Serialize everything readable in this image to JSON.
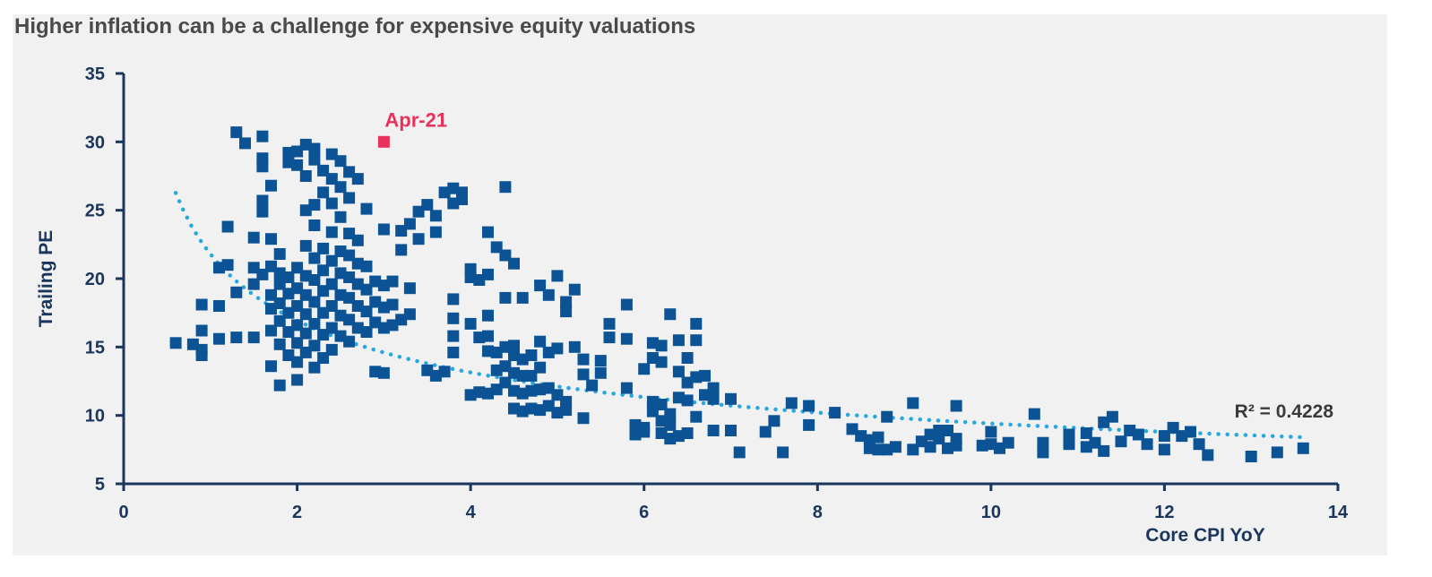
{
  "chart_data": {
    "type": "scatter",
    "title": "Higher inflation can be a challenge for expensive equity valuations",
    "xlabel": "Core CPI YoY",
    "ylabel": "Trailing PE",
    "xlim": [
      0,
      14
    ],
    "ylim": [
      5,
      35
    ],
    "xticks": [
      "0",
      "2",
      "4",
      "6",
      "8",
      "10",
      "12",
      "14"
    ],
    "yticks": [
      "5",
      "10",
      "15",
      "20",
      "25",
      "30",
      "35"
    ],
    "grid": false,
    "legend": "none",
    "colors": {
      "points": "#0b5394",
      "highlight": "#e8315b",
      "trendline": "#29a8e0",
      "axis": "#1b365d"
    },
    "series": [
      {
        "points": [
          [
            0.6,
            15.3
          ],
          [
            0.8,
            15.2
          ],
          [
            0.9,
            14.8
          ],
          [
            0.9,
            14.4
          ],
          [
            0.9,
            16.2
          ],
          [
            0.9,
            18.1
          ],
          [
            1.1,
            15.6
          ],
          [
            1.1,
            18.0
          ],
          [
            1.1,
            20.8
          ],
          [
            1.2,
            21.0
          ],
          [
            1.2,
            23.8
          ],
          [
            1.3,
            19.0
          ],
          [
            1.3,
            15.7
          ],
          [
            1.3,
            30.7
          ],
          [
            1.4,
            29.9
          ],
          [
            1.5,
            15.7
          ],
          [
            1.5,
            19.6
          ],
          [
            1.5,
            20.8
          ],
          [
            1.5,
            23.0
          ],
          [
            1.6,
            20.3
          ],
          [
            1.6,
            24.9
          ],
          [
            1.6,
            25.7
          ],
          [
            1.6,
            28.2
          ],
          [
            1.6,
            28.8
          ],
          [
            1.6,
            30.4
          ],
          [
            1.7,
            16.2
          ],
          [
            1.7,
            17.8
          ],
          [
            1.7,
            18.8
          ],
          [
            1.7,
            20.9
          ],
          [
            1.7,
            22.9
          ],
          [
            1.7,
            26.8
          ],
          [
            1.7,
            13.6
          ],
          [
            1.8,
            15.2
          ],
          [
            1.8,
            16.9
          ],
          [
            1.8,
            18.2
          ],
          [
            1.8,
            19.6
          ],
          [
            1.8,
            20.4
          ],
          [
            1.8,
            21.8
          ],
          [
            1.8,
            12.2
          ],
          [
            1.9,
            14.4
          ],
          [
            1.9,
            16.1
          ],
          [
            1.9,
            17.5
          ],
          [
            1.9,
            18.9
          ],
          [
            1.9,
            20.1
          ],
          [
            1.9,
            29.2
          ],
          [
            1.9,
            28.5
          ],
          [
            2.0,
            13.9
          ],
          [
            2.0,
            15.3
          ],
          [
            2.0,
            16.6
          ],
          [
            2.0,
            18.0
          ],
          [
            2.0,
            19.3
          ],
          [
            2.0,
            20.8
          ],
          [
            2.0,
            28.3
          ],
          [
            2.0,
            29.3
          ],
          [
            2.0,
            12.6
          ],
          [
            2.1,
            14.6
          ],
          [
            2.1,
            16.0
          ],
          [
            2.1,
            17.4
          ],
          [
            2.1,
            18.8
          ],
          [
            2.1,
            20.2
          ],
          [
            2.1,
            22.4
          ],
          [
            2.1,
            25.0
          ],
          [
            2.1,
            27.5
          ],
          [
            2.1,
            29.8
          ],
          [
            2.2,
            13.5
          ],
          [
            2.2,
            15.1
          ],
          [
            2.2,
            16.7
          ],
          [
            2.2,
            18.3
          ],
          [
            2.2,
            19.9
          ],
          [
            2.2,
            21.5
          ],
          [
            2.2,
            23.9
          ],
          [
            2.2,
            25.4
          ],
          [
            2.2,
            28.7
          ],
          [
            2.2,
            29.5
          ],
          [
            2.3,
            14.2
          ],
          [
            2.3,
            15.9
          ],
          [
            2.3,
            17.5
          ],
          [
            2.3,
            19.1
          ],
          [
            2.3,
            20.6
          ],
          [
            2.3,
            22.2
          ],
          [
            2.3,
            26.3
          ],
          [
            2.3,
            27.9
          ],
          [
            2.4,
            14.8
          ],
          [
            2.4,
            16.4
          ],
          [
            2.4,
            18.0
          ],
          [
            2.4,
            19.6
          ],
          [
            2.4,
            21.3
          ],
          [
            2.4,
            23.4
          ],
          [
            2.4,
            25.5
          ],
          [
            2.4,
            27.3
          ],
          [
            2.4,
            29.1
          ],
          [
            2.5,
            15.8
          ],
          [
            2.5,
            17.3
          ],
          [
            2.5,
            18.8
          ],
          [
            2.5,
            20.4
          ],
          [
            2.5,
            22.0
          ],
          [
            2.5,
            24.5
          ],
          [
            2.5,
            26.7
          ],
          [
            2.5,
            28.6
          ],
          [
            2.6,
            15.4
          ],
          [
            2.6,
            17.0
          ],
          [
            2.6,
            18.6
          ],
          [
            2.6,
            20.1
          ],
          [
            2.6,
            21.7
          ],
          [
            2.6,
            23.3
          ],
          [
            2.6,
            25.9
          ],
          [
            2.6,
            27.8
          ],
          [
            2.7,
            16.4
          ],
          [
            2.7,
            18.0
          ],
          [
            2.7,
            19.6
          ],
          [
            2.7,
            21.1
          ],
          [
            2.7,
            22.8
          ],
          [
            2.7,
            27.3
          ],
          [
            2.8,
            16.1
          ],
          [
            2.8,
            17.6
          ],
          [
            2.8,
            19.2
          ],
          [
            2.8,
            20.9
          ],
          [
            2.8,
            25.1
          ],
          [
            2.9,
            16.8
          ],
          [
            2.9,
            18.3
          ],
          [
            2.9,
            19.8
          ],
          [
            2.9,
            13.2
          ],
          [
            3.0,
            16.4
          ],
          [
            3.0,
            17.9
          ],
          [
            3.0,
            19.5
          ],
          [
            3.0,
            23.6
          ],
          [
            3.0,
            13.1
          ],
          [
            3.1,
            16.6
          ],
          [
            3.1,
            18.1
          ],
          [
            3.1,
            19.8
          ],
          [
            3.2,
            17.0
          ],
          [
            3.2,
            22.1
          ],
          [
            3.2,
            23.5
          ],
          [
            3.3,
            17.4
          ],
          [
            3.3,
            19.3
          ],
          [
            3.3,
            24.0
          ],
          [
            3.4,
            22.9
          ],
          [
            3.4,
            24.9
          ],
          [
            3.5,
            13.3
          ],
          [
            3.5,
            25.4
          ],
          [
            3.6,
            12.9
          ],
          [
            3.6,
            23.4
          ],
          [
            3.6,
            24.6
          ],
          [
            3.7,
            13.2
          ],
          [
            3.7,
            26.3
          ],
          [
            3.8,
            14.6
          ],
          [
            3.8,
            15.8
          ],
          [
            3.8,
            17.1
          ],
          [
            3.8,
            18.5
          ],
          [
            3.8,
            25.5
          ],
          [
            3.8,
            26.6
          ],
          [
            3.9,
            26.3
          ],
          [
            3.9,
            25.8
          ],
          [
            4.0,
            11.5
          ],
          [
            4.0,
            16.7
          ],
          [
            4.0,
            20.7
          ],
          [
            4.0,
            20.1
          ],
          [
            4.1,
            11.7
          ],
          [
            4.1,
            15.7
          ],
          [
            4.1,
            19.9
          ],
          [
            4.2,
            11.6
          ],
          [
            4.2,
            14.7
          ],
          [
            4.2,
            15.8
          ],
          [
            4.2,
            17.3
          ],
          [
            4.2,
            20.3
          ],
          [
            4.2,
            23.4
          ],
          [
            4.3,
            11.9
          ],
          [
            4.3,
            13.3
          ],
          [
            4.3,
            14.6
          ],
          [
            4.3,
            22.3
          ],
          [
            4.4,
            12.4
          ],
          [
            4.4,
            13.6
          ],
          [
            4.4,
            15.0
          ],
          [
            4.4,
            18.6
          ],
          [
            4.4,
            26.7
          ],
          [
            4.4,
            21.7
          ],
          [
            4.5,
            10.5
          ],
          [
            4.5,
            11.8
          ],
          [
            4.5,
            13.1
          ],
          [
            4.5,
            14.4
          ],
          [
            4.5,
            15.1
          ],
          [
            4.5,
            21.1
          ],
          [
            4.6,
            10.3
          ],
          [
            4.6,
            11.6
          ],
          [
            4.6,
            12.9
          ],
          [
            4.6,
            14.1
          ],
          [
            4.6,
            18.6
          ],
          [
            4.7,
            10.5
          ],
          [
            4.7,
            11.8
          ],
          [
            4.7,
            12.9
          ],
          [
            4.7,
            14.4
          ],
          [
            4.8,
            10.4
          ],
          [
            4.8,
            11.9
          ],
          [
            4.8,
            13.5
          ],
          [
            4.8,
            19.5
          ],
          [
            4.8,
            15.4
          ],
          [
            4.9,
            10.7
          ],
          [
            4.9,
            12.0
          ],
          [
            4.9,
            14.6
          ],
          [
            4.9,
            18.8
          ],
          [
            5.0,
            10.2
          ],
          [
            5.0,
            11.5
          ],
          [
            5.0,
            14.9
          ],
          [
            5.0,
            20.2
          ],
          [
            5.1,
            10.4
          ],
          [
            5.1,
            11.0
          ],
          [
            5.1,
            18.3
          ],
          [
            5.1,
            17.6
          ],
          [
            5.2,
            15.0
          ],
          [
            5.2,
            19.2
          ],
          [
            5.3,
            9.8
          ],
          [
            5.3,
            14.1
          ],
          [
            5.3,
            13.0
          ],
          [
            5.4,
            12.2
          ],
          [
            5.5,
            13.1
          ],
          [
            5.5,
            14.0
          ],
          [
            5.6,
            15.7
          ],
          [
            5.6,
            16.7
          ],
          [
            5.8,
            12.0
          ],
          [
            5.8,
            15.6
          ],
          [
            5.8,
            18.1
          ],
          [
            5.9,
            8.6
          ],
          [
            5.9,
            9.3
          ],
          [
            6.0,
            9.1
          ],
          [
            6.0,
            13.4
          ],
          [
            6.0,
            8.8
          ],
          [
            6.1,
            10.3
          ],
          [
            6.1,
            11.0
          ],
          [
            6.1,
            14.2
          ],
          [
            6.1,
            15.3
          ],
          [
            6.2,
            8.7
          ],
          [
            6.2,
            9.6
          ],
          [
            6.2,
            10.8
          ],
          [
            6.2,
            15.1
          ],
          [
            6.2,
            13.9
          ],
          [
            6.3,
            8.3
          ],
          [
            6.3,
            9.3
          ],
          [
            6.3,
            10.1
          ],
          [
            6.3,
            17.4
          ],
          [
            6.4,
            8.5
          ],
          [
            6.4,
            11.3
          ],
          [
            6.4,
            13.2
          ],
          [
            6.4,
            15.5
          ],
          [
            6.5,
            8.7
          ],
          [
            6.5,
            11.1
          ],
          [
            6.5,
            12.4
          ],
          [
            6.5,
            14.2
          ],
          [
            6.6,
            9.9
          ],
          [
            6.6,
            12.8
          ],
          [
            6.6,
            15.5
          ],
          [
            6.6,
            16.7
          ],
          [
            6.7,
            11.5
          ],
          [
            6.7,
            12.9
          ],
          [
            6.8,
            8.9
          ],
          [
            6.8,
            11.2
          ],
          [
            6.8,
            12.0
          ],
          [
            7.0,
            8.9
          ],
          [
            7.0,
            11.2
          ],
          [
            7.1,
            7.3
          ],
          [
            7.4,
            8.8
          ],
          [
            7.5,
            9.6
          ],
          [
            7.6,
            7.3
          ],
          [
            7.7,
            10.9
          ],
          [
            7.9,
            9.3
          ],
          [
            7.9,
            10.7
          ],
          [
            8.2,
            10.2
          ],
          [
            8.4,
            9.0
          ],
          [
            8.5,
            8.5
          ],
          [
            8.6,
            7.6
          ],
          [
            8.6,
            8.2
          ],
          [
            8.7,
            7.5
          ],
          [
            8.7,
            8.4
          ],
          [
            8.8,
            7.5
          ],
          [
            8.8,
            9.9
          ],
          [
            8.9,
            7.7
          ],
          [
            9.1,
            7.5
          ],
          [
            9.1,
            10.9
          ],
          [
            9.2,
            8.1
          ],
          [
            9.3,
            7.7
          ],
          [
            9.3,
            8.6
          ],
          [
            9.4,
            8.3
          ],
          [
            9.4,
            8.9
          ],
          [
            9.5,
            7.6
          ],
          [
            9.5,
            8.9
          ],
          [
            9.6,
            7.8
          ],
          [
            9.6,
            8.3
          ],
          [
            9.6,
            10.7
          ],
          [
            9.9,
            7.8
          ],
          [
            10.0,
            7.9
          ],
          [
            10.0,
            8.8
          ],
          [
            10.1,
            7.6
          ],
          [
            10.2,
            8.0
          ],
          [
            10.5,
            10.1
          ],
          [
            10.6,
            7.3
          ],
          [
            10.6,
            8.0
          ],
          [
            10.9,
            7.9
          ],
          [
            10.9,
            8.6
          ],
          [
            11.1,
            7.7
          ],
          [
            11.1,
            8.7
          ],
          [
            11.2,
            8.0
          ],
          [
            11.3,
            7.4
          ],
          [
            11.3,
            9.5
          ],
          [
            11.4,
            9.9
          ],
          [
            11.5,
            8.1
          ],
          [
            11.6,
            8.9
          ],
          [
            11.7,
            8.6
          ],
          [
            11.8,
            7.9
          ],
          [
            12.0,
            7.5
          ],
          [
            12.0,
            8.5
          ],
          [
            12.1,
            9.1
          ],
          [
            12.2,
            8.5
          ],
          [
            12.3,
            8.8
          ],
          [
            12.4,
            7.9
          ],
          [
            12.5,
            7.1
          ],
          [
            13.0,
            7.0
          ],
          [
            13.3,
            7.3
          ],
          [
            13.6,
            7.6
          ]
        ]
      }
    ],
    "highlight": {
      "label": "Apr-21",
      "x": 3.0,
      "y": 30.0
    },
    "trendline": {
      "type": "power",
      "a": 21.8,
      "b": -0.365,
      "xmin": 0.6,
      "xmax": 13.6,
      "label": "R² = 0.4228"
    }
  }
}
